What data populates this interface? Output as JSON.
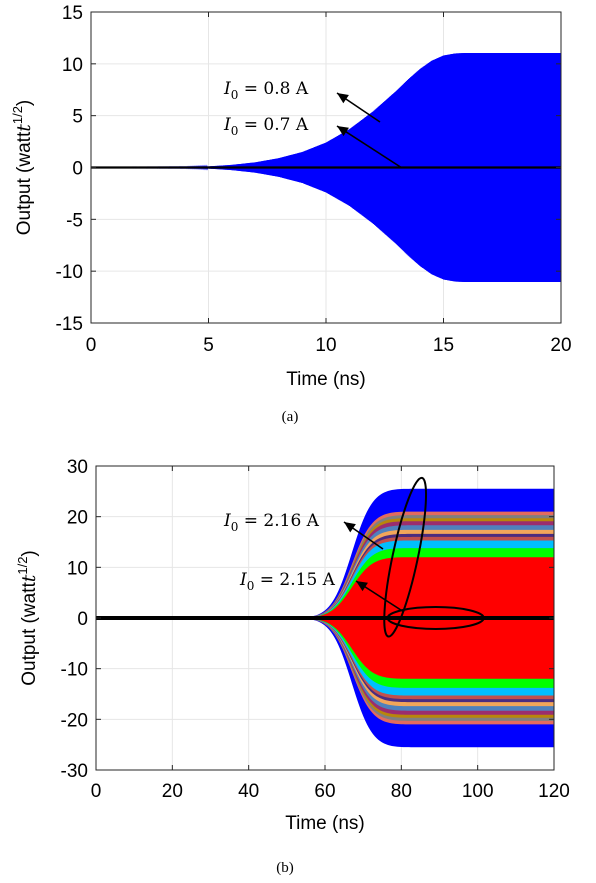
{
  "chart_data": [
    {
      "type": "line",
      "xlabel": "Time (ns)",
      "ylabel_main": "Output (watt",
      "ylabel_exp": "1/2",
      "ylabel_close": ")",
      "xlim": [
        0,
        20
      ],
      "ylim": [
        -15,
        15
      ],
      "xticks": [
        "0",
        "5",
        "10",
        "15",
        "20"
      ],
      "yticks": [
        "15",
        "10",
        "5",
        "0",
        "-5",
        "-10",
        "-15"
      ],
      "grid": true,
      "caption": "(a)",
      "series": [
        {
          "color": "#0000ff",
          "kind": "oscillation-envelope",
          "envelope": [
            [
              0,
              0.02
            ],
            [
              2,
              0.03
            ],
            [
              4,
              0.05
            ],
            [
              5,
              0.1
            ],
            [
              6,
              0.25
            ],
            [
              7,
              0.5
            ],
            [
              8,
              0.9
            ],
            [
              9,
              1.5
            ],
            [
              10,
              2.4
            ],
            [
              11,
              3.7
            ],
            [
              12,
              5.4
            ],
            [
              13,
              7.4
            ],
            [
              13.5,
              8.5
            ],
            [
              14,
              9.5
            ],
            [
              14.5,
              10.3
            ],
            [
              15,
              10.8
            ],
            [
              15.5,
              11.0
            ],
            [
              16,
              11.05
            ],
            [
              20,
              11.05
            ]
          ]
        },
        {
          "color": "#000000",
          "kind": "flat",
          "envelope": [
            [
              0,
              0.1
            ],
            [
              20,
              0.1
            ]
          ]
        }
      ],
      "annotations": [
        {
          "label_main": "I",
          "label_sub": "0",
          "label_rest": " = 0.8 A",
          "target": [
            12,
            8.2
          ]
        },
        {
          "label_main": "I",
          "label_sub": "0",
          "label_rest": " = 0.7 A",
          "target": [
            13,
            0
          ]
        }
      ]
    },
    {
      "type": "line",
      "xlabel": "Time (ns)",
      "ylabel_main": "Output (watt",
      "ylabel_exp": "1/2",
      "ylabel_close": ")",
      "xlim": [
        0,
        120
      ],
      "ylim": [
        -30,
        30
      ],
      "xticks": [
        "0",
        "20",
        "40",
        "60",
        "80",
        "100",
        "120"
      ],
      "yticks": [
        "30",
        "20",
        "10",
        "0",
        "-10",
        "-20",
        "-30"
      ],
      "grid": true,
      "caption": "(b)",
      "series": [
        {
          "color": "#0000ff",
          "amplitude": 25.5
        },
        {
          "color": "#e26b5e",
          "amplitude": 21.0
        },
        {
          "color": "#7f7f7f",
          "amplitude": 20.3
        },
        {
          "color": "#b8860b",
          "amplitude": 19.7
        },
        {
          "color": "#9b2d6e",
          "amplitude": 19.1
        },
        {
          "color": "#4f81bd",
          "amplitude": 18.3
        },
        {
          "color": "#f2a65a",
          "amplitude": 17.4
        },
        {
          "color": "#4b2c7f",
          "amplitude": 16.6
        },
        {
          "color": "#c0504d",
          "amplitude": 16.0
        },
        {
          "color": "#00bfff",
          "amplitude": 15.3
        },
        {
          "color": "#00ff00",
          "amplitude": 13.8
        },
        {
          "color": "#ff0000",
          "amplitude": 12.0
        }
      ],
      "growth_onset_ns": 50,
      "saturation_ns": 84,
      "flat_series": {
        "color": "#000000",
        "value": 0
      },
      "annotations": [
        {
          "label_main": "I",
          "label_sub": "0",
          "label_rest": " = 2.16 A",
          "target": [
            80,
            16
          ],
          "ellipse": [
            81,
            12,
            6,
            16
          ]
        },
        {
          "label_main": "I",
          "label_sub": "0",
          "label_rest": " = 2.15 A",
          "target": [
            89,
            3
          ],
          "ellipse": [
            89,
            0,
            14,
            5
          ]
        }
      ]
    }
  ]
}
